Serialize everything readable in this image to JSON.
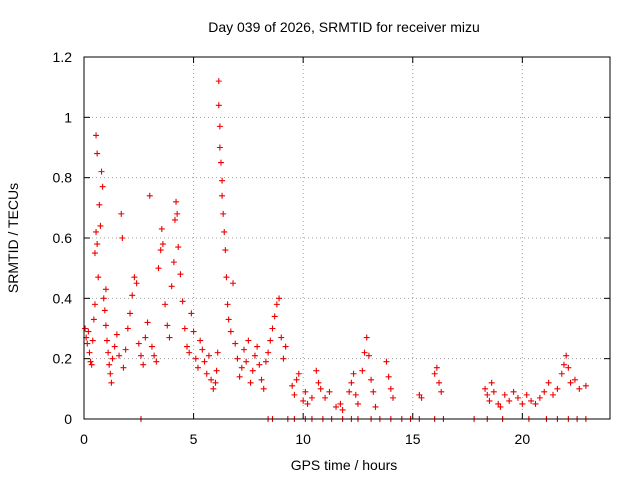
{
  "chart_data": {
    "type": "scatter",
    "title": "Day 039 of 2026, SRMTID for receiver mizu",
    "xlabel": "GPS time / hours",
    "ylabel": "SRMTID / TECUs",
    "xlim": [
      0,
      24
    ],
    "ylim": [
      0,
      1.2
    ],
    "x_ticks": [
      0,
      5,
      10,
      15,
      20
    ],
    "x_tick_labels": [
      "0",
      "5",
      "10",
      "15",
      "20"
    ],
    "y_ticks": [
      0,
      0.2,
      0.4,
      0.6,
      0.8,
      1.0,
      1.2
    ],
    "y_tick_labels": [
      "0",
      "0.2",
      "0.4",
      "0.6",
      "0.8",
      "1",
      "1.2"
    ],
    "grid": true,
    "marker": "+",
    "color": "#ee0000",
    "series": [
      {
        "name": "SRMTID",
        "points": [
          [
            0.05,
            0.3
          ],
          [
            0.1,
            0.27
          ],
          [
            0.15,
            0.25
          ],
          [
            0.2,
            0.29
          ],
          [
            0.25,
            0.22
          ],
          [
            0.3,
            0.19
          ],
          [
            0.35,
            0.18
          ],
          [
            0.4,
            0.26
          ],
          [
            0.45,
            0.33
          ],
          [
            0.5,
            0.38
          ],
          [
            0.5,
            0.55
          ],
          [
            0.55,
            0.62
          ],
          [
            0.55,
            0.94
          ],
          [
            0.6,
            0.88
          ],
          [
            0.6,
            0.58
          ],
          [
            0.65,
            0.47
          ],
          [
            0.7,
            0.71
          ],
          [
            0.75,
            0.64
          ],
          [
            0.8,
            0.82
          ],
          [
            0.85,
            0.77
          ],
          [
            0.9,
            0.4
          ],
          [
            0.95,
            0.36
          ],
          [
            1.0,
            0.31
          ],
          [
            1.0,
            0.43
          ],
          [
            1.05,
            0.26
          ],
          [
            1.1,
            0.22
          ],
          [
            1.15,
            0.18
          ],
          [
            1.2,
            0.15
          ],
          [
            1.25,
            0.12
          ],
          [
            1.3,
            0.2
          ],
          [
            1.4,
            0.24
          ],
          [
            1.5,
            0.28
          ],
          [
            1.6,
            0.21
          ],
          [
            1.7,
            0.68
          ],
          [
            1.75,
            0.6
          ],
          [
            1.8,
            0.17
          ],
          [
            1.9,
            0.23
          ],
          [
            2.0,
            0.3
          ],
          [
            2.1,
            0.35
          ],
          [
            2.2,
            0.41
          ],
          [
            2.3,
            0.47
          ],
          [
            2.4,
            0.45
          ],
          [
            2.5,
            0.25
          ],
          [
            2.6,
            0.21
          ],
          [
            2.7,
            0.18
          ],
          [
            2.8,
            0.27
          ],
          [
            2.9,
            0.32
          ],
          [
            3.0,
            0.74
          ],
          [
            3.1,
            0.24
          ],
          [
            3.2,
            0.21
          ],
          [
            3.3,
            0.19
          ],
          [
            3.4,
            0.5
          ],
          [
            3.5,
            0.56
          ],
          [
            3.55,
            0.63
          ],
          [
            3.6,
            0.58
          ],
          [
            3.7,
            0.38
          ],
          [
            3.8,
            0.31
          ],
          [
            3.9,
            0.27
          ],
          [
            4.0,
            0.44
          ],
          [
            4.1,
            0.52
          ],
          [
            4.15,
            0.66
          ],
          [
            4.2,
            0.72
          ],
          [
            4.25,
            0.68
          ],
          [
            4.3,
            0.57
          ],
          [
            4.4,
            0.48
          ],
          [
            4.5,
            0.39
          ],
          [
            4.6,
            0.3
          ],
          [
            4.7,
            0.24
          ],
          [
            4.8,
            0.22
          ],
          [
            4.9,
            0.35
          ],
          [
            5.0,
            0.29
          ],
          [
            5.1,
            0.2
          ],
          [
            5.2,
            0.17
          ],
          [
            5.3,
            0.26
          ],
          [
            5.4,
            0.23
          ],
          [
            5.5,
            0.19
          ],
          [
            5.6,
            0.15
          ],
          [
            5.7,
            0.21
          ],
          [
            5.8,
            0.13
          ],
          [
            5.9,
            0.1
          ],
          [
            6.0,
            0.12
          ],
          [
            6.05,
            0.16
          ],
          [
            6.1,
            0.22
          ],
          [
            6.15,
            1.12
          ],
          [
            6.15,
            1.04
          ],
          [
            6.2,
            0.97
          ],
          [
            6.2,
            0.9
          ],
          [
            6.25,
            0.85
          ],
          [
            6.3,
            0.79
          ],
          [
            6.3,
            0.74
          ],
          [
            6.35,
            0.68
          ],
          [
            6.4,
            0.62
          ],
          [
            6.45,
            0.56
          ],
          [
            6.5,
            0.47
          ],
          [
            6.55,
            0.38
          ],
          [
            6.6,
            0.33
          ],
          [
            6.7,
            0.29
          ],
          [
            6.8,
            0.45
          ],
          [
            6.9,
            0.25
          ],
          [
            7.0,
            0.2
          ],
          [
            7.1,
            0.14
          ],
          [
            7.2,
            0.17
          ],
          [
            7.3,
            0.23
          ],
          [
            7.4,
            0.19
          ],
          [
            7.5,
            0.26
          ],
          [
            7.6,
            0.12
          ],
          [
            7.7,
            0.16
          ],
          [
            7.8,
            0.21
          ],
          [
            7.9,
            0.24
          ],
          [
            8.0,
            0.18
          ],
          [
            8.1,
            0.13
          ],
          [
            8.2,
            0.1
          ],
          [
            8.3,
            0.19
          ],
          [
            8.4,
            0.22
          ],
          [
            8.5,
            0.26
          ],
          [
            8.6,
            0.3
          ],
          [
            8.7,
            0.34
          ],
          [
            8.8,
            0.38
          ],
          [
            8.9,
            0.4
          ],
          [
            9.0,
            0.27
          ],
          [
            9.1,
            0.2
          ],
          [
            9.2,
            0.24
          ],
          [
            9.5,
            0.11
          ],
          [
            9.6,
            0.08
          ],
          [
            9.7,
            0.13
          ],
          [
            9.8,
            0.15
          ],
          [
            10.0,
            0.06
          ],
          [
            10.1,
            0.09
          ],
          [
            10.2,
            0.05
          ],
          [
            10.4,
            0.07
          ],
          [
            10.6,
            0.16
          ],
          [
            10.7,
            0.12
          ],
          [
            10.8,
            0.1
          ],
          [
            11.0,
            0.07
          ],
          [
            11.2,
            0.09
          ],
          [
            11.5,
            0.04
          ],
          [
            11.7,
            0.05
          ],
          [
            11.8,
            0.03
          ],
          [
            12.1,
            0.09
          ],
          [
            12.2,
            0.12
          ],
          [
            12.3,
            0.15
          ],
          [
            12.4,
            0.08
          ],
          [
            12.5,
            0.05
          ],
          [
            12.7,
            0.16
          ],
          [
            12.8,
            0.22
          ],
          [
            12.9,
            0.27
          ],
          [
            13.0,
            0.21
          ],
          [
            13.1,
            0.13
          ],
          [
            13.2,
            0.09
          ],
          [
            13.3,
            0.04
          ],
          [
            13.8,
            0.19
          ],
          [
            13.9,
            0.14
          ],
          [
            14.0,
            0.1
          ],
          [
            14.1,
            0.07
          ],
          [
            15.3,
            0.08
          ],
          [
            15.4,
            0.07
          ],
          [
            16.0,
            0.15
          ],
          [
            16.1,
            0.17
          ],
          [
            16.2,
            0.12
          ],
          [
            16.3,
            0.09
          ],
          [
            18.3,
            0.1
          ],
          [
            18.4,
            0.08
          ],
          [
            18.5,
            0.06
          ],
          [
            18.6,
            0.12
          ],
          [
            18.7,
            0.09
          ],
          [
            18.9,
            0.05
          ],
          [
            19.0,
            0.04
          ],
          [
            19.2,
            0.08
          ],
          [
            19.4,
            0.06
          ],
          [
            19.6,
            0.09
          ],
          [
            19.8,
            0.07
          ],
          [
            20.0,
            0.05
          ],
          [
            20.2,
            0.08
          ],
          [
            20.4,
            0.06
          ],
          [
            20.6,
            0.05
          ],
          [
            20.8,
            0.07
          ],
          [
            21.0,
            0.09
          ],
          [
            21.2,
            0.12
          ],
          [
            21.4,
            0.08
          ],
          [
            21.6,
            0.1
          ],
          [
            21.8,
            0.15
          ],
          [
            21.9,
            0.18
          ],
          [
            22.0,
            0.21
          ],
          [
            22.1,
            0.17
          ],
          [
            22.2,
            0.12
          ],
          [
            22.4,
            0.13
          ],
          [
            22.6,
            0.1
          ],
          [
            22.9,
            0.11
          ],
          [
            2.6,
            0.0
          ],
          [
            8.4,
            0.0
          ],
          [
            8.6,
            0.0
          ],
          [
            9.3,
            0.0
          ],
          [
            9.6,
            0.0
          ],
          [
            10.1,
            0.0
          ],
          [
            10.4,
            0.0
          ],
          [
            10.9,
            0.0
          ],
          [
            11.3,
            0.0
          ],
          [
            11.8,
            0.0
          ],
          [
            12.2,
            0.0
          ],
          [
            12.5,
            0.0
          ],
          [
            13.1,
            0.0
          ],
          [
            13.5,
            0.0
          ],
          [
            14.0,
            0.0
          ],
          [
            14.5,
            0.0
          ],
          [
            14.9,
            0.0
          ],
          [
            15.3,
            0.0
          ],
          [
            16.0,
            0.0
          ],
          [
            16.4,
            0.0
          ],
          [
            17.8,
            0.0
          ],
          [
            18.4,
            0.0
          ],
          [
            19.1,
            0.0
          ],
          [
            20.3,
            0.0
          ],
          [
            21.1,
            0.0
          ],
          [
            21.6,
            0.0
          ],
          [
            22.1,
            0.0
          ],
          [
            22.5,
            0.0
          ],
          [
            22.9,
            0.0
          ]
        ]
      }
    ]
  }
}
